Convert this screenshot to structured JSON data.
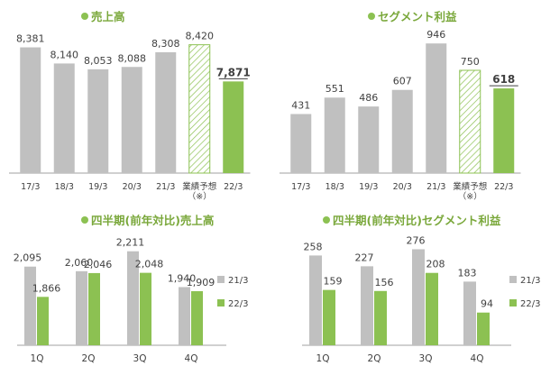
{
  "colors": {
    "gray": "#c0c0c0",
    "green": "#8cc152",
    "accent": "#7aa83b",
    "hatch": "#8cc152",
    "axis": "#a0a0a0",
    "text": "#404040"
  },
  "titles": {
    "sales": "売上高",
    "segment": "セグメント利益",
    "q_sales": "四半期(前年対比)売上高",
    "q_segment": "四半期(前年対比)セグメント利益"
  },
  "chart_data": [
    {
      "type": "bar",
      "title": "売上高",
      "categories": [
        "17/3",
        "18/3",
        "19/3",
        "20/3",
        "21/3",
        "業績予想\n（※）",
        "22/3"
      ],
      "values": [
        8381,
        8140,
        8053,
        8088,
        8308,
        8420,
        7871
      ],
      "labels": [
        "8,381",
        "8,140",
        "8,053",
        "8,088",
        "8,308",
        "8,420",
        "7,871"
      ],
      "styles": [
        "gray",
        "gray",
        "gray",
        "gray",
        "gray",
        "hatch",
        "green"
      ],
      "ylim": [
        6500,
        8550
      ]
    },
    {
      "type": "bar",
      "title": "セグメント利益",
      "categories": [
        "17/3",
        "18/3",
        "19/3",
        "20/3",
        "21/3",
        "業績予想\n（※）",
        "22/3"
      ],
      "values": [
        431,
        551,
        486,
        607,
        946,
        750,
        618
      ],
      "labels": [
        "431",
        "551",
        "486",
        "607",
        "946",
        "750",
        "618"
      ],
      "styles": [
        "gray",
        "gray",
        "gray",
        "gray",
        "gray",
        "hatch",
        "green"
      ],
      "ylim": [
        0,
        1000
      ]
    },
    {
      "type": "bar",
      "title": "四半期(前年対比)売上高",
      "categories": [
        "1Q",
        "2Q",
        "3Q",
        "4Q"
      ],
      "series": [
        {
          "name": "21/3",
          "values": [
            2095,
            2060,
            2211,
            1940
          ],
          "labels": [
            "2,095",
            "2,060",
            "2,211",
            "1,940"
          ],
          "color": "gray"
        },
        {
          "name": "22/3",
          "values": [
            1866,
            2046,
            2048,
            1909
          ],
          "labels": [
            "1,866",
            "2,046",
            "2,048",
            "1,909"
          ],
          "color": "green"
        }
      ],
      "ylim": [
        1500,
        2250
      ]
    },
    {
      "type": "bar",
      "title": "四半期(前年対比)セグメント利益",
      "categories": [
        "1Q",
        "2Q",
        "3Q",
        "4Q"
      ],
      "series": [
        {
          "name": "21/3",
          "values": [
            258,
            227,
            276,
            183
          ],
          "labels": [
            "258",
            "227",
            "276",
            "183"
          ],
          "color": "gray"
        },
        {
          "name": "22/3",
          "values": [
            159,
            156,
            208,
            94
          ],
          "labels": [
            "159",
            "156",
            "208",
            "94"
          ],
          "color": "green"
        }
      ],
      "ylim": [
        0,
        285
      ]
    }
  ]
}
